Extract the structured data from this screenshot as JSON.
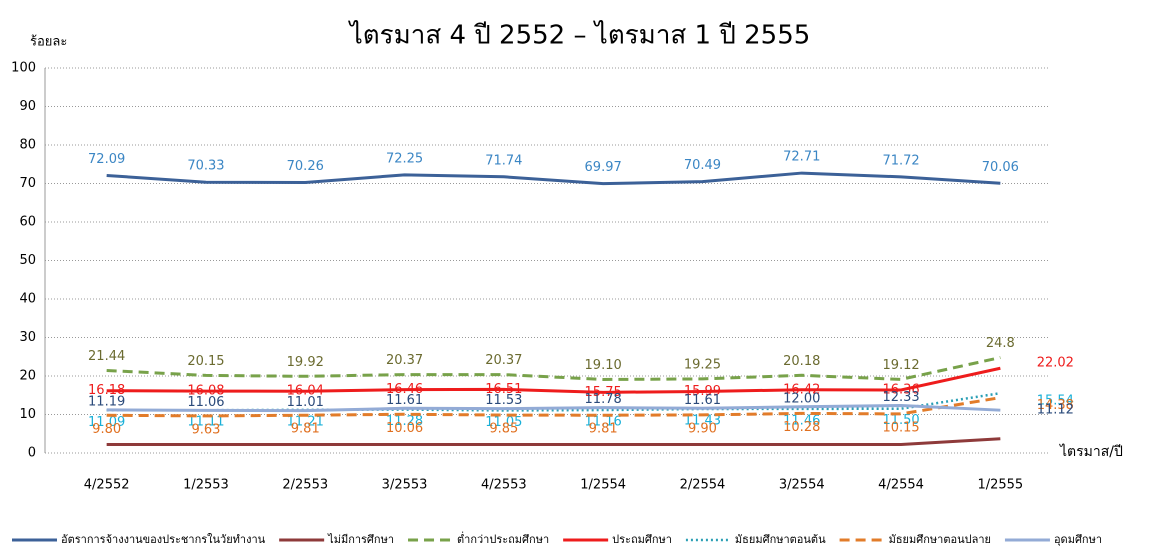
{
  "chart_data": {
    "type": "line",
    "title": "ไตรมาส 4 ปี 2552 – ไตรมาส 1 ปี 2555",
    "y_label": "ร้อยละ",
    "x_label": "ไตรมาส/ปี",
    "categories": [
      "4/2552",
      "1/2553",
      "2/2553",
      "3/2553",
      "4/2553",
      "1/2554",
      "2/2554",
      "3/2554",
      "4/2554",
      "1/2555"
    ],
    "ylim": [
      0,
      100
    ],
    "yticks": [
      0,
      10,
      20,
      30,
      40,
      50,
      60,
      70,
      80,
      90,
      100
    ],
    "grid": true,
    "legend": "bottom",
    "series": [
      {
        "name": "อัตราการจ้างงานของประชากรในวัยทำงาน",
        "color": "#3c6198",
        "line_style": "solid",
        "values": [
          72.09,
          70.33,
          70.26,
          72.25,
          71.74,
          69.97,
          70.49,
          72.71,
          71.72,
          70.06
        ],
        "value_labels": [
          "72.09",
          "70.33",
          "70.26",
          "72.25",
          "71.74",
          "69.97",
          "70.49",
          "72.71",
          "71.72",
          "70.06"
        ],
        "label_color": "#3b86c4"
      },
      {
        "name": "ไม่มีการศึกษา",
        "color": "#8e3a3a",
        "line_style": "solid",
        "values": [
          2.2,
          2.2,
          2.2,
          2.2,
          2.2,
          2.2,
          2.2,
          2.2,
          2.2,
          3.7
        ]
      },
      {
        "name": "ต่ำกว่าประถมศึกษา",
        "color": "#78a24a",
        "line_style": "dashed",
        "values": [
          21.44,
          20.15,
          19.92,
          20.37,
          20.37,
          19.1,
          19.25,
          20.18,
          19.12,
          24.8
        ],
        "value_labels": [
          "21.44",
          "20.15",
          "19.92",
          "20.37",
          "20.37",
          "19.10",
          "19.25",
          "20.18",
          "19.12",
          "24.8"
        ],
        "label_color": "#6b6b30"
      },
      {
        "name": "ประถมศึกษา",
        "color": "#ee1c1c",
        "line_style": "solid",
        "values": [
          16.18,
          16.08,
          16.04,
          16.46,
          16.51,
          15.75,
          15.99,
          16.42,
          16.36,
          22.02
        ],
        "value_labels": [
          "16.18",
          "16.08",
          "16.04",
          "16.46",
          "16.51",
          "15.75",
          "15.99",
          "16.42",
          "16.36",
          "22.02"
        ],
        "label_color": "#ee1c1c"
      },
      {
        "name": "มัธยมศึกษาตอนต้น",
        "color": "#2b9fb5",
        "line_style": "dotted",
        "values": [
          11.09,
          11.11,
          11.21,
          11.28,
          11.05,
          11.16,
          11.43,
          11.46,
          11.5,
          15.54
        ],
        "value_labels": [
          "11.09",
          "11.11",
          "11.21",
          "11.28",
          "11.05",
          "11.16",
          "11.43",
          "11.46",
          "11.50",
          "15.54"
        ],
        "label_color": "#1ab0d8"
      },
      {
        "name": "มัธยมศึกษาตอนปลาย",
        "color": "#e27c2a",
        "line_style": "dashed",
        "values": [
          9.8,
          9.63,
          9.81,
          10.06,
          9.85,
          9.81,
          9.9,
          10.28,
          10.15,
          14.38
        ],
        "value_labels": [
          "9.80",
          "9.63",
          "9.81",
          "10.06",
          "9.85",
          "9.81",
          "9.90",
          "10.28",
          "10.15",
          "14.38"
        ],
        "label_color": "#e07020"
      },
      {
        "name": "อุดมศึกษา",
        "color": "#93abd6",
        "line_style": "solid",
        "values": [
          11.19,
          11.06,
          11.01,
          11.61,
          11.53,
          11.78,
          11.61,
          12.0,
          12.33,
          11.12
        ],
        "value_labels": [
          "11.19",
          "11.06",
          "11.01",
          "11.61",
          "11.53",
          "11.78",
          "11.61",
          "12.00",
          "12.33",
          "11.12"
        ],
        "label_color": "#2a4a7a"
      }
    ]
  }
}
